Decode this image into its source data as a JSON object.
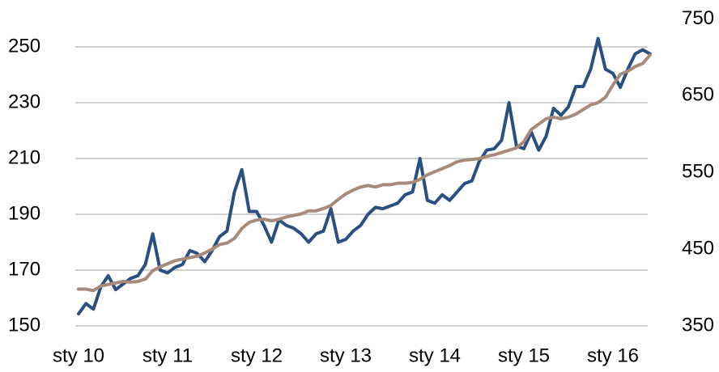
{
  "chart_data": {
    "type": "line",
    "categories": [
      "sty 10",
      null,
      null,
      null,
      null,
      null,
      null,
      null,
      null,
      null,
      null,
      null,
      "sty 11",
      null,
      null,
      null,
      null,
      null,
      null,
      null,
      null,
      null,
      null,
      null,
      "sty 12",
      null,
      null,
      null,
      null,
      null,
      null,
      null,
      null,
      null,
      null,
      null,
      "sty 13",
      null,
      null,
      null,
      null,
      null,
      null,
      null,
      null,
      null,
      null,
      null,
      "sty 14",
      null,
      null,
      null,
      null,
      null,
      null,
      null,
      null,
      null,
      null,
      null,
      "sty 15",
      null,
      null,
      null,
      null,
      null,
      null,
      null,
      null,
      null,
      null,
      null,
      "sty 16",
      null,
      null,
      null,
      null,
      null
    ],
    "series": [
      {
        "color": "#2a5082",
        "values": [
          154.3,
          158,
          156,
          164,
          168,
          163,
          165,
          167,
          168,
          172,
          183,
          170,
          169,
          171,
          172,
          177,
          176,
          173,
          177,
          182,
          184,
          198,
          206,
          191,
          191,
          186,
          180,
          188,
          186,
          185,
          183,
          180,
          183,
          184,
          192,
          180,
          181,
          184,
          186,
          190,
          192.5,
          192,
          193,
          194,
          197,
          198,
          210,
          195,
          194,
          197,
          195,
          198,
          201,
          202,
          209,
          213,
          213.5,
          216.5,
          230,
          214.5,
          213.5,
          219.5,
          213,
          218,
          228,
          225.5,
          228.5,
          235.8,
          235.8,
          242,
          253,
          242,
          240.5,
          235.5,
          242,
          247.5,
          249,
          247.5
        ]
      },
      {
        "color": "#a78a7a",
        "axis": "y2",
        "values": [
          398,
          398,
          396,
          402,
          404,
          406,
          408,
          407,
          408,
          411,
          422,
          427,
          431,
          435,
          437,
          439,
          441,
          445,
          450,
          456,
          458,
          464,
          477,
          485,
          488,
          489,
          487,
          489,
          492,
          494,
          496,
          500,
          500,
          503,
          507,
          515,
          522,
          527,
          531,
          533,
          531,
          534,
          534,
          536,
          536,
          537,
          541,
          547,
          551,
          555,
          559,
          564,
          566,
          567,
          568,
          571,
          573,
          576,
          579,
          582,
          590,
          606,
          613,
          620,
          622,
          620,
          622,
          626,
          632,
          638,
          641,
          648,
          664,
          678,
          682,
          688,
          692,
          703
        ]
      }
    ],
    "ylim": [
      150,
      260
    ],
    "yticks": [
      150,
      170,
      190,
      210,
      230,
      250
    ],
    "y2lim": [
      350,
      750
    ],
    "y2ticks": [
      350,
      450,
      550,
      650,
      750
    ],
    "grid": true
  }
}
